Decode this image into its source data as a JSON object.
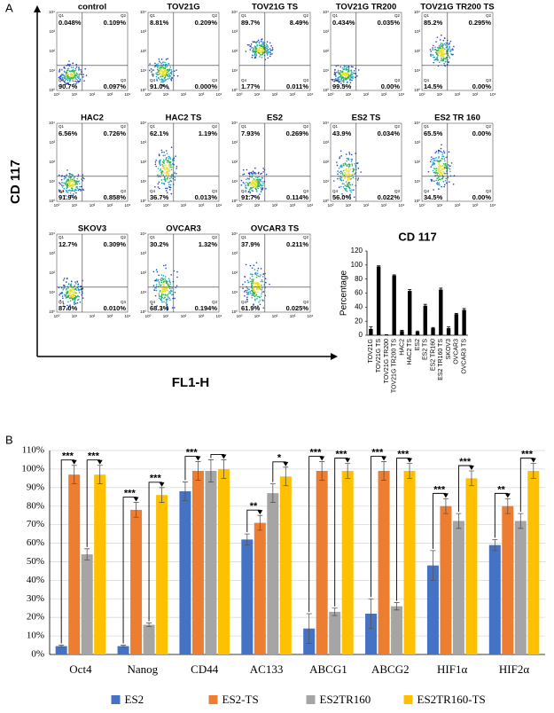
{
  "figure_labels": {
    "a": "A",
    "b": "B"
  },
  "chart_data": [
    {
      "type": "flow-grid",
      "y_label": "CD 117",
      "x_label": "FL1-H",
      "quadrant_names": [
        "Q1",
        "Q2",
        "Q3",
        "Q4"
      ],
      "axis_ticks": [
        "10⁰",
        "10¹",
        "10²",
        "10³",
        "10⁴"
      ],
      "panels": [
        {
          "title": "control",
          "quadrants": [
            "0.048%",
            "0.109%",
            "0.097%",
            "90.7%"
          ]
        },
        {
          "title": "TOV21G",
          "quadrants": [
            "8.81%",
            "0.209%",
            "0.000%",
            "91.0%"
          ]
        },
        {
          "title": "TOV21G TS",
          "quadrants": [
            "89.7%",
            "8.49%",
            "0.011%",
            "1.77%"
          ]
        },
        {
          "title": "TOV21G TR200",
          "quadrants": [
            "0.434%",
            "0.035%",
            "0.00%",
            "99.5%"
          ]
        },
        {
          "title": "TOV21G TR200 TS",
          "quadrants": [
            "85.2%",
            "0.295%",
            "0.00%",
            "14.5%"
          ]
        },
        {
          "title": "HAC2",
          "quadrants": [
            "6.56%",
            "0.726%",
            "0.858%",
            "91.9%"
          ]
        },
        {
          "title": "HAC2 TS",
          "quadrants": [
            "62.1%",
            "1.19%",
            "0.013%",
            "36.7%"
          ]
        },
        {
          "title": "ES2",
          "quadrants": [
            "7.93%",
            "0.269%",
            "0.114%",
            "91.7%"
          ]
        },
        {
          "title": "ES2 TS",
          "quadrants": [
            "43.9%",
            "0.034%",
            "0.022%",
            "56.0%"
          ]
        },
        {
          "title": "ES2 TR 160",
          "quadrants": [
            "65.5%",
            "0.00%",
            "0.00%",
            "34.5%"
          ]
        },
        {
          "title": "SKOV3",
          "quadrants": [
            "12.7%",
            "0.309%",
            "0.010%",
            "87.0%"
          ]
        },
        {
          "title": "OVCAR3",
          "quadrants": [
            "30.2%",
            "1.32%",
            "0.194%",
            "68.3%"
          ]
        },
        {
          "title": "OVCAR3 TS",
          "quadrants": [
            "37.9%",
            "0.211%",
            "0.025%",
            "61.9%"
          ]
        }
      ]
    },
    {
      "type": "bar",
      "title": "CD 117",
      "y_label": "Percentage",
      "categories": [
        "TOV21G",
        "TOV21G TS",
        "TOV21G TR200",
        "TOV21G TR200 TS",
        "HAC2",
        "HAC2 TS",
        "ES2",
        "ES2 TS",
        "ES2 TR160",
        "ES2 TR160 TS",
        "SKOV3",
        "OVCAR3",
        "OVCAR3 TS"
      ],
      "values": [
        9,
        98,
        0.5,
        85,
        6,
        63,
        5,
        42,
        10,
        65,
        10,
        30,
        36
      ],
      "errors": [
        3,
        1,
        0.3,
        1,
        1,
        2,
        1,
        2,
        1,
        2,
        2,
        1,
        2
      ],
      "color": "#000000",
      "ylim": [
        0,
        120
      ],
      "yticks": [
        0,
        20,
        40,
        60,
        80,
        100,
        120
      ]
    },
    {
      "type": "grouped-bar",
      "categories": [
        "Oct4",
        "Nanog",
        "CD44",
        "AC133",
        "ABCG1",
        "ABCG2",
        "HIF1α",
        "HIF2α"
      ],
      "series": [
        {
          "name": "ES2",
          "color": "#4472c4",
          "values": [
            4.5,
            4.5,
            88,
            62,
            14,
            22,
            48,
            59
          ],
          "errors": [
            0.5,
            0.5,
            5,
            3,
            8,
            8,
            8,
            3
          ]
        },
        {
          "name": "ES2-TS",
          "color": "#ed7d31",
          "values": [
            97,
            78,
            99,
            71,
            99,
            99,
            80,
            80
          ],
          "errors": [
            5,
            4,
            5,
            4,
            5,
            5,
            4,
            4
          ]
        },
        {
          "name": "ES2TR160",
          "color": "#a5a5a5",
          "values": [
            54,
            16,
            99,
            87,
            23,
            26,
            72,
            72
          ],
          "errors": [
            3,
            1,
            6,
            5,
            2,
            2,
            4,
            4
          ]
        },
        {
          "name": "ES2TR160-TS",
          "color": "#ffc000",
          "values": [
            97,
            86,
            100,
            96,
            99,
            99,
            95,
            99
          ],
          "errors": [
            5,
            4,
            5,
            5,
            4,
            4,
            4,
            4
          ]
        }
      ],
      "significance": [
        [
          "***",
          "***"
        ],
        [
          "***",
          "***"
        ],
        [
          "***",
          null
        ],
        [
          "**",
          "*"
        ],
        [
          "***",
          "***"
        ],
        [
          "***",
          "***"
        ],
        [
          "***",
          "***"
        ],
        [
          "**",
          "***"
        ]
      ],
      "ylim": [
        0,
        110
      ],
      "yticks": [
        {
          "value": 0,
          "label": "0%"
        },
        {
          "value": 10,
          "label": "10%"
        },
        {
          "value": 20,
          "label": "20%"
        },
        {
          "value": 30,
          "label": "30%"
        },
        {
          "value": 40,
          "label": "40%"
        },
        {
          "value": 50,
          "label": "50%"
        },
        {
          "value": 60,
          "label": "60%"
        },
        {
          "value": 70,
          "label": "70%"
        },
        {
          "value": 80,
          "label": "80%"
        },
        {
          "value": 90,
          "label": "90%"
        },
        {
          "value": 100,
          "label": "100%"
        },
        {
          "value": 110,
          "label": "110%"
        }
      ],
      "grid": true,
      "legend": "bottom"
    }
  ]
}
